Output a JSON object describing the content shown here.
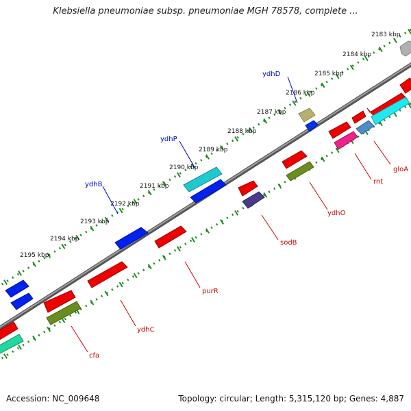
{
  "title": "Klebsiella pneumoniae subsp. pneumoniae MGH 78578, complete ...",
  "footer": {
    "accession": "Accession: NC_009648",
    "summary": "Topology: circular; Length: 5,315,120 bp; Genes: 4,887"
  },
  "colors": {
    "backbone": "#808080",
    "ruler_ticks": "#1e8c1e",
    "label_plus": "#0000cc",
    "label_minus": "#cc0000",
    "ruler_text": "#111111"
  },
  "ruler": {
    "labels": [
      "2183 kbp",
      "2184 kbp",
      "2185 kbp",
      "2186 kbp",
      "2187 kbp",
      "2188 kbp",
      "2189 kbp",
      "2190 kbp",
      "2191 kbp",
      "2192 kbp",
      "2193 kbp",
      "2194 kbp",
      "2195 kbp"
    ]
  },
  "gene_labels": {
    "plus": [
      "ydhD",
      "ydhP",
      "ydhB"
    ],
    "minus": [
      "gloA",
      "rnt",
      "ydhO",
      "sodB",
      "purR",
      "ydhC",
      "cfa"
    ]
  }
}
